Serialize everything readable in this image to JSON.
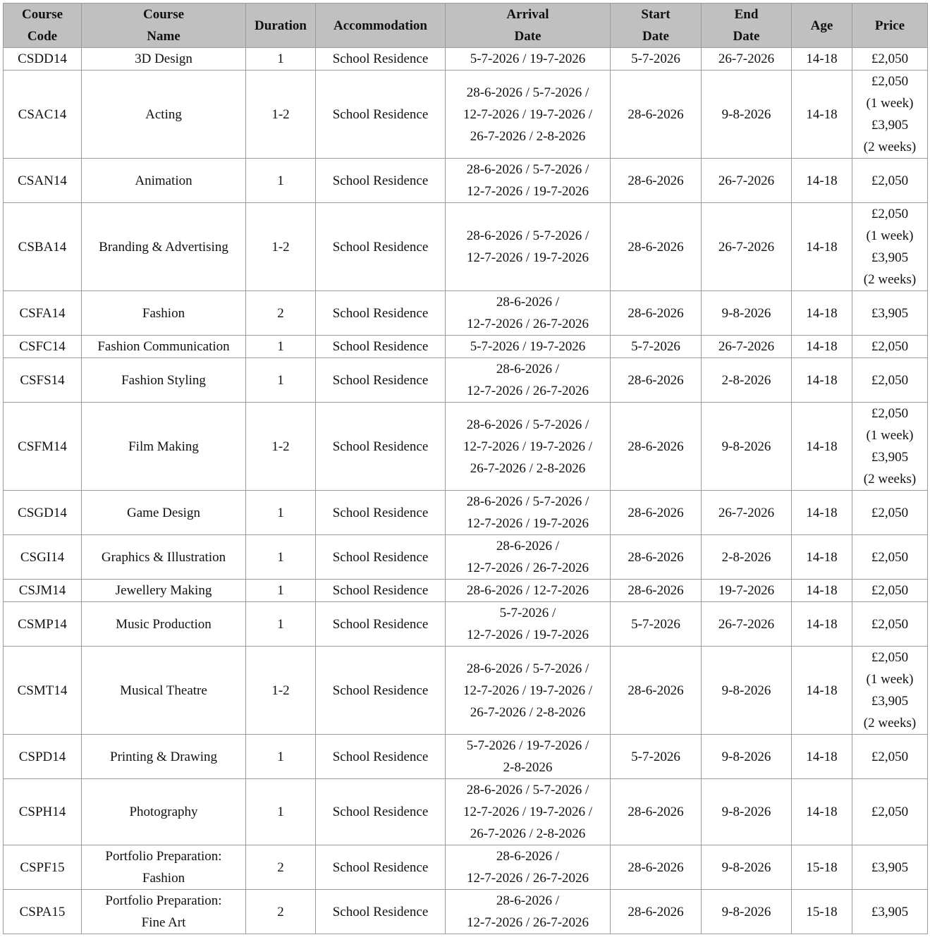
{
  "table": {
    "headers": [
      [
        "Course",
        "Code"
      ],
      [
        "Course",
        "Name"
      ],
      [
        "Duration"
      ],
      [
        "Accommodation"
      ],
      [
        "Arrival",
        "Date"
      ],
      [
        "Start",
        "Date"
      ],
      [
        "End",
        "Date"
      ],
      [
        "Age"
      ],
      [
        "Price"
      ]
    ],
    "rows": [
      {
        "code": "CSDD14",
        "name": [
          "3D Design"
        ],
        "duration": "1",
        "accommodation": "School Residence",
        "arrival": [
          "5-7-2026 / 19-7-2026"
        ],
        "start": "5-7-2026",
        "end": "26-7-2026",
        "age": "14-18",
        "price": [
          "£2,050"
        ]
      },
      {
        "code": "CSAC14",
        "name": [
          "Acting"
        ],
        "duration": "1-2",
        "accommodation": "School Residence",
        "arrival": [
          "28-6-2026 / 5-7-2026 /",
          "12-7-2026 / 19-7-2026 /",
          "26-7-2026 / 2-8-2026"
        ],
        "start": "28-6-2026",
        "end": "9-8-2026",
        "age": "14-18",
        "price": [
          "£2,050",
          "(1 week)",
          "£3,905",
          "(2 weeks)"
        ]
      },
      {
        "code": "CSAN14",
        "name": [
          "Animation"
        ],
        "duration": "1",
        "accommodation": "School Residence",
        "arrival": [
          "28-6-2026 / 5-7-2026 /",
          "12-7-2026 / 19-7-2026"
        ],
        "start": "28-6-2026",
        "end": "26-7-2026",
        "age": "14-18",
        "price": [
          "£2,050"
        ]
      },
      {
        "code": "CSBA14",
        "name": [
          "Branding & Advertising"
        ],
        "duration": "1-2",
        "accommodation": "School Residence",
        "arrival": [
          "28-6-2026 / 5-7-2026 /",
          "12-7-2026 / 19-7-2026"
        ],
        "start": "28-6-2026",
        "end": "26-7-2026",
        "age": "14-18",
        "price": [
          "£2,050",
          "(1 week)",
          "£3,905",
          "(2 weeks)"
        ]
      },
      {
        "code": "CSFA14",
        "name": [
          "Fashion"
        ],
        "duration": "2",
        "accommodation": "School Residence",
        "arrival": [
          "28-6-2026 /",
          "12-7-2026 / 26-7-2026"
        ],
        "start": "28-6-2026",
        "end": "9-8-2026",
        "age": "14-18",
        "price": [
          "£3,905"
        ]
      },
      {
        "code": "CSFC14",
        "name": [
          "Fashion Communication"
        ],
        "duration": "1",
        "accommodation": "School Residence",
        "arrival": [
          "5-7-2026 / 19-7-2026"
        ],
        "start": "5-7-2026",
        "end": "26-7-2026",
        "age": "14-18",
        "price": [
          "£2,050"
        ]
      },
      {
        "code": "CSFS14",
        "name": [
          "Fashion Styling"
        ],
        "duration": "1",
        "accommodation": "School Residence",
        "arrival": [
          "28-6-2026 /",
          "12-7-2026 / 26-7-2026"
        ],
        "start": "28-6-2026",
        "end": "2-8-2026",
        "age": "14-18",
        "price": [
          "£2,050"
        ]
      },
      {
        "code": "CSFM14",
        "name": [
          "Film Making"
        ],
        "duration": "1-2",
        "accommodation": "School Residence",
        "arrival": [
          "28-6-2026 / 5-7-2026 /",
          "12-7-2026 / 19-7-2026 /",
          "26-7-2026 / 2-8-2026"
        ],
        "start": "28-6-2026",
        "end": "9-8-2026",
        "age": "14-18",
        "price": [
          "£2,050",
          "(1 week)",
          "£3,905",
          "(2 weeks)"
        ]
      },
      {
        "code": "CSGD14",
        "name": [
          "Game Design"
        ],
        "duration": "1",
        "accommodation": "School Residence",
        "arrival": [
          "28-6-2026 / 5-7-2026 /",
          "12-7-2026 / 19-7-2026"
        ],
        "start": "28-6-2026",
        "end": "26-7-2026",
        "age": "14-18",
        "price": [
          "£2,050"
        ]
      },
      {
        "code": "CSGI14",
        "name": [
          "Graphics & Illustration"
        ],
        "duration": "1",
        "accommodation": "School Residence",
        "arrival": [
          "28-6-2026 /",
          "12-7-2026 / 26-7-2026"
        ],
        "start": "28-6-2026",
        "end": "2-8-2026",
        "age": "14-18",
        "price": [
          "£2,050"
        ]
      },
      {
        "code": "CSJM14",
        "name": [
          "Jewellery Making"
        ],
        "duration": "1",
        "accommodation": "School Residence",
        "arrival": [
          "28-6-2026 / 12-7-2026"
        ],
        "start": "28-6-2026",
        "end": "19-7-2026",
        "age": "14-18",
        "price": [
          "£2,050"
        ]
      },
      {
        "code": "CSMP14",
        "name": [
          "Music Production"
        ],
        "duration": "1",
        "accommodation": "School Residence",
        "arrival": [
          "5-7-2026 /",
          "12-7-2026 / 19-7-2026"
        ],
        "start": "5-7-2026",
        "end": "26-7-2026",
        "age": "14-18",
        "price": [
          "£2,050"
        ]
      },
      {
        "code": "CSMT14",
        "name": [
          "Musical Theatre"
        ],
        "duration": "1-2",
        "accommodation": "School Residence",
        "arrival": [
          "28-6-2026 / 5-7-2026 /",
          "12-7-2026 / 19-7-2026 /",
          "26-7-2026 / 2-8-2026"
        ],
        "start": "28-6-2026",
        "end": "9-8-2026",
        "age": "14-18",
        "price": [
          "£2,050",
          "(1 week)",
          "£3,905",
          "(2 weeks)"
        ]
      },
      {
        "code": "CSPD14",
        "name": [
          "Printing & Drawing"
        ],
        "duration": "1",
        "accommodation": "School Residence",
        "arrival": [
          "5-7-2026 / 19-7-2026 /",
          "2-8-2026"
        ],
        "start": "5-7-2026",
        "end": "9-8-2026",
        "age": "14-18",
        "price": [
          "£2,050"
        ]
      },
      {
        "code": "CSPH14",
        "name": [
          "Photography"
        ],
        "duration": "1",
        "accommodation": "School Residence",
        "arrival": [
          "28-6-2026 / 5-7-2026 /",
          "12-7-2026 / 19-7-2026 /",
          "26-7-2026 / 2-8-2026"
        ],
        "start": "28-6-2026",
        "end": "9-8-2026",
        "age": "14-18",
        "price": [
          "£2,050"
        ]
      },
      {
        "code": "CSPF15",
        "name": [
          "Portfolio Preparation:",
          "Fashion"
        ],
        "duration": "2",
        "accommodation": "School Residence",
        "arrival": [
          "28-6-2026 /",
          "12-7-2026 / 26-7-2026"
        ],
        "start": "28-6-2026",
        "end": "9-8-2026",
        "age": "15-18",
        "price": [
          "£3,905"
        ]
      },
      {
        "code": "CSPA15",
        "name": [
          "Portfolio Preparation:",
          "Fine Art"
        ],
        "duration": "2",
        "accommodation": "School Residence",
        "arrival": [
          "28-6-2026 /",
          "12-7-2026 / 26-7-2026"
        ],
        "start": "28-6-2026",
        "end": "9-8-2026",
        "age": "15-18",
        "price": [
          "£3,905"
        ]
      }
    ]
  }
}
